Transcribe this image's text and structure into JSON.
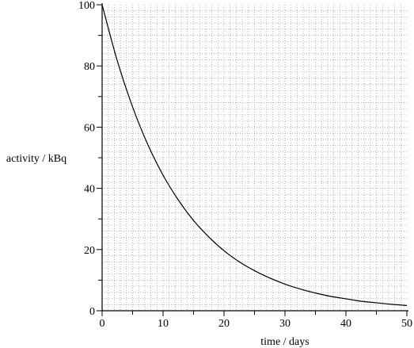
{
  "chart_data": {
    "type": "line",
    "xlabel": "time / days",
    "ylabel": "activity / kBq",
    "xlim": [
      0,
      50
    ],
    "ylim": [
      0,
      100
    ],
    "x_ticks": [
      0,
      10,
      20,
      30,
      40,
      50
    ],
    "y_ticks": [
      0,
      20,
      40,
      60,
      80,
      100
    ],
    "x_tick_labels": [
      "0",
      "10",
      "20",
      "30",
      "40",
      "50"
    ],
    "y_tick_labels": [
      "0",
      "20",
      "40",
      "60",
      "80",
      "100"
    ],
    "grid": true,
    "series": [
      {
        "x": [
          0,
          2.5,
          5,
          7.5,
          10,
          12.5,
          15,
          17.5,
          20,
          22.5,
          25,
          27.5,
          30,
          32.5,
          35,
          37.5,
          40,
          42.5,
          45,
          47.5,
          50
        ],
        "y": [
          100,
          81.6,
          66.6,
          54.3,
          44.3,
          36.2,
          29.5,
          24.1,
          19.6,
          16.0,
          13.1,
          10.7,
          8.7,
          7.1,
          5.8,
          4.7,
          3.9,
          3.1,
          2.6,
          2.1,
          1.7
        ]
      }
    ]
  },
  "colors": {
    "axis": "#000000",
    "grid": "#9a9a9a",
    "curve": "#000000",
    "background": "#ffffff"
  }
}
